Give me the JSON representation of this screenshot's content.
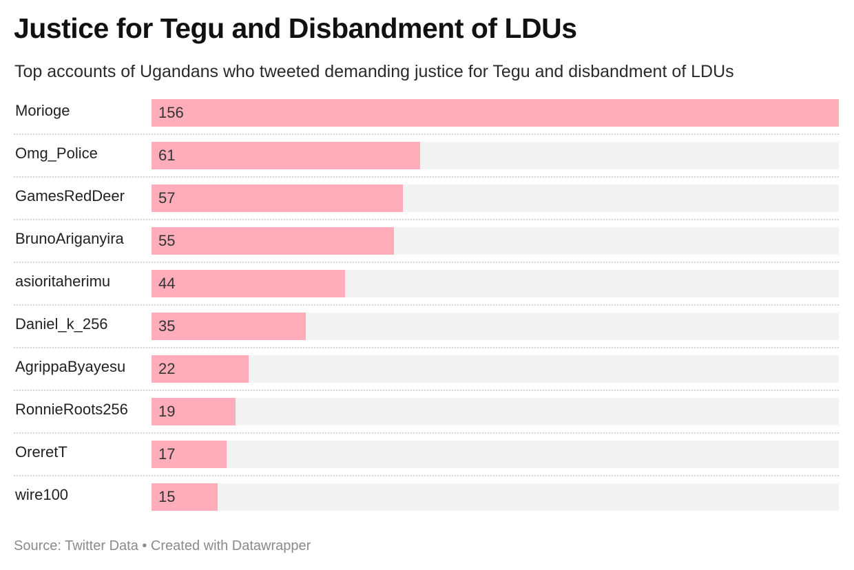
{
  "chart_data": {
    "type": "bar",
    "orientation": "horizontal",
    "title": "Justice for Tegu and Disbandment of LDUs",
    "subtitle": "Top accounts of Ugandans who tweeted demanding justice for Tegu and disbandment of LDUs",
    "categories": [
      "Morioge",
      "Omg_Police",
      "GamesRedDeer",
      "BrunoAriganyira",
      "asioritaherimu",
      "Daniel_k_256",
      "AgrippaByayesu",
      "RonnieRoots256",
      "OreretT",
      "wire100"
    ],
    "values": [
      156,
      61,
      57,
      55,
      44,
      35,
      22,
      19,
      17,
      15
    ],
    "xlim": [
      0,
      156
    ],
    "grid": false,
    "value_labels": "inside-bar-left",
    "colors": {
      "bar": "#ffadba",
      "track": "#f3f3f3"
    }
  },
  "source": "Source: Twitter Data • Created with Datawrapper"
}
